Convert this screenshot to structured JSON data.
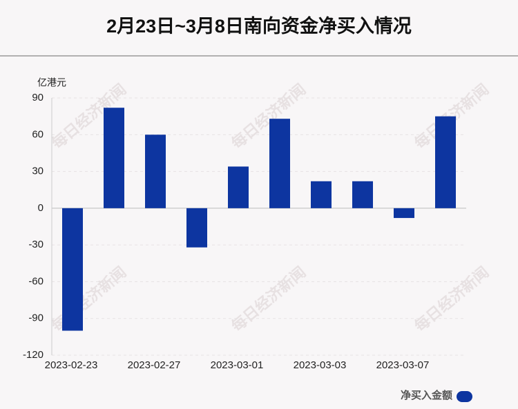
{
  "chart_data": {
    "type": "bar",
    "title": "2月23日~3月8日南向资金净买入情况",
    "y_label": "亿港元",
    "watermark": "每日经济新闻",
    "categories": [
      "2023-02-23",
      null,
      "2023-02-27",
      null,
      "2023-03-01",
      null,
      "2023-03-03",
      null,
      "2023-03-07",
      null
    ],
    "series": [
      {
        "name": "净买入金额",
        "color": "#0d35a0",
        "values": [
          -100,
          82,
          60,
          -32,
          34,
          73,
          22,
          22,
          -8,
          75
        ]
      }
    ],
    "ylim": [
      -120,
      90
    ],
    "yticks": [
      -120,
      -90,
      -60,
      -30,
      0,
      30,
      60,
      90
    ],
    "grid": true,
    "legend": "bottom-right"
  }
}
